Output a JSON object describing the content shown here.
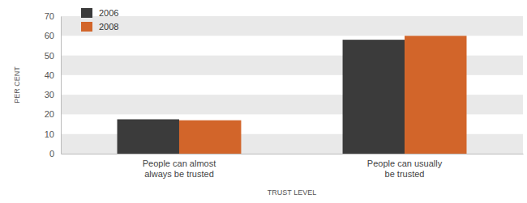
{
  "chart_data": {
    "type": "bar",
    "x_label": "TRUST LEVEL",
    "y_label": "PER CENT",
    "categories": [
      "People can almost always be trusted",
      "People can usually be trusted"
    ],
    "series": [
      {
        "name": "2006",
        "color": "#3b3b3b",
        "values": [
          17.5,
          58
        ]
      },
      {
        "name": "2008",
        "color": "#d2652a",
        "values": [
          17,
          60
        ]
      }
    ],
    "ylim": [
      0,
      70
    ],
    "yticks": [
      0,
      10,
      20,
      30,
      40,
      50,
      60,
      70
    ],
    "grid": true,
    "legend": "top-left"
  }
}
